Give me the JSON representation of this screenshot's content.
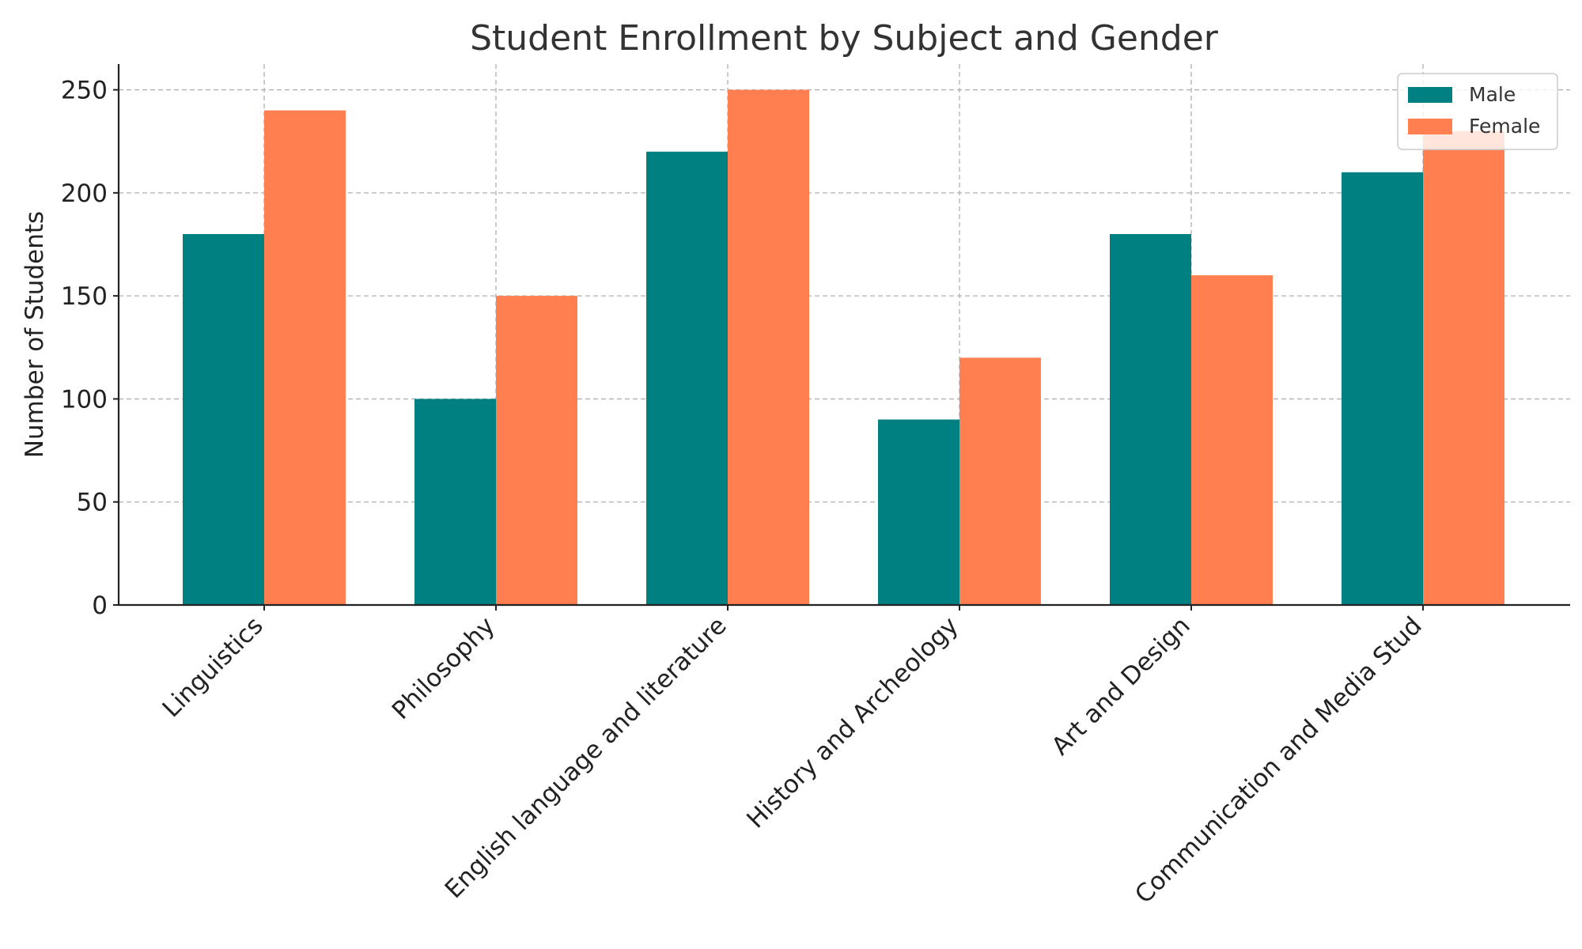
{
  "chart_data": {
    "type": "bar",
    "title": "Student Enrollment by Subject and Gender",
    "xlabel": "",
    "ylabel": "Number of Students",
    "categories": [
      "Linguistics",
      "Philosophy",
      "English language and literature",
      "History and Archeology",
      "Art and Design",
      "Communication and Media Stud"
    ],
    "series": [
      {
        "name": "Male",
        "color": "#008080",
        "values": [
          180,
          100,
          220,
          90,
          180,
          210
        ]
      },
      {
        "name": "Female",
        "color": "#FF7F50",
        "values": [
          240,
          150,
          250,
          120,
          160,
          230
        ]
      }
    ],
    "ylim": [
      0,
      262.5
    ],
    "yticks": [
      0,
      50,
      100,
      150,
      200,
      250
    ],
    "grid": true,
    "legend_position": "top-right"
  }
}
